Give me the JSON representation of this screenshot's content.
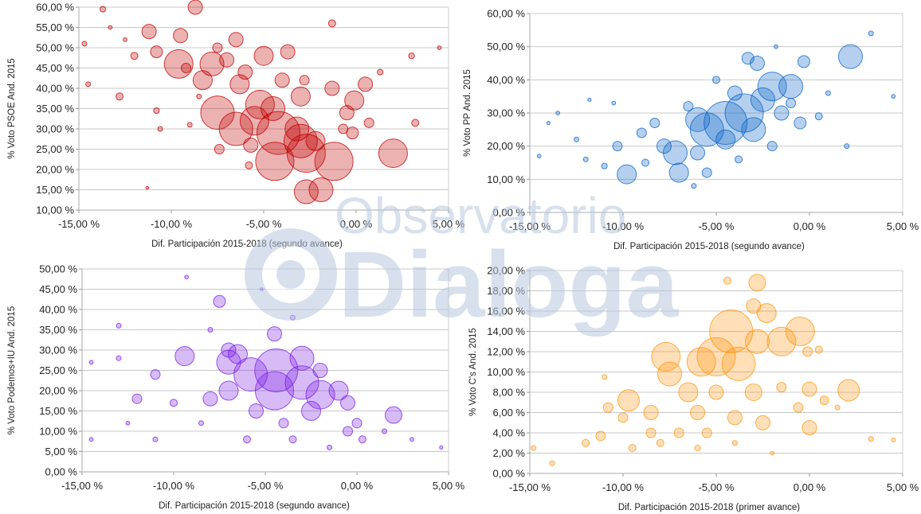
{
  "watermark": {
    "line1": "Observatorio",
    "line2": "Dialoga"
  },
  "chart_data": [
    {
      "type": "scatter",
      "title": "",
      "xlabel": "Dif. Participación 2015-2018 (segundo avance)",
      "ylabel": "% Voto PSOE And. 2015",
      "xlim": [
        -15,
        5
      ],
      "ylim": [
        10,
        60
      ],
      "xticks": [
        "-15,00 %",
        "-10,00 %",
        "-5,00 %",
        "0,00 %",
        "5,00 %"
      ],
      "yticks": [
        "10,00 %",
        "15,00 %",
        "20,00 %",
        "25,00 %",
        "30,00 %",
        "35,00 %",
        "40,00 %",
        "45,00 %",
        "50,00 %",
        "55,00 %",
        "60,00 %"
      ],
      "grid": true,
      "color": "#c00000",
      "points": [
        [
          -4.2,
          29,
          9
        ],
        [
          -4.4,
          22,
          8
        ],
        [
          -3,
          27,
          7
        ],
        [
          -2.7,
          24,
          8
        ],
        [
          -1.2,
          22,
          8
        ],
        [
          -6.5,
          30,
          7
        ],
        [
          -7.5,
          34,
          7
        ],
        [
          -5.2,
          36,
          6
        ],
        [
          -9.6,
          46,
          6
        ],
        [
          -7.8,
          46,
          5
        ],
        [
          -2.7,
          14.5,
          5
        ],
        [
          -1.9,
          15,
          5
        ],
        [
          2,
          24,
          6
        ],
        [
          -0.1,
          37,
          4
        ],
        [
          -1.3,
          40,
          3
        ],
        [
          -0.5,
          34,
          3
        ],
        [
          0.5,
          41,
          3
        ],
        [
          -5,
          48,
          4
        ],
        [
          -3.7,
          49,
          3
        ],
        [
          -8.7,
          60,
          3
        ],
        [
          -11.2,
          54,
          3
        ],
        [
          -10.8,
          49,
          2.5
        ],
        [
          -8.3,
          42,
          4
        ],
        [
          -6.3,
          41,
          4
        ],
        [
          -3,
          38,
          4
        ],
        [
          -5.7,
          26,
          3
        ],
        [
          -7.4,
          25,
          2
        ],
        [
          -7,
          47,
          3
        ],
        [
          -6.5,
          52,
          3
        ],
        [
          -9.5,
          53,
          3
        ],
        [
          -12,
          48,
          1.5
        ],
        [
          -14.7,
          51,
          1
        ],
        [
          -14.5,
          41,
          1
        ],
        [
          -12.8,
          38,
          1.5
        ],
        [
          -10.8,
          34.5,
          1.2
        ],
        [
          -10.6,
          30,
          1
        ],
        [
          -9,
          31,
          1
        ],
        [
          3.2,
          31.5,
          1.5
        ],
        [
          3,
          48,
          1.2
        ],
        [
          4.5,
          50,
          0.8
        ],
        [
          1.3,
          44,
          1.2
        ],
        [
          -11.3,
          15.5,
          0.6
        ],
        [
          -1.3,
          56,
          1.5
        ],
        [
          -13.7,
          59.5,
          1.2
        ],
        [
          -4,
          42,
          3
        ],
        [
          -8.5,
          38,
          1
        ],
        [
          -3.2,
          30,
          5
        ],
        [
          -5.5,
          32,
          6
        ],
        [
          -4.5,
          35,
          5
        ],
        [
          -2.2,
          27,
          4
        ],
        [
          -6,
          44,
          3
        ],
        [
          -7.5,
          50,
          2
        ],
        [
          -2.8,
          42,
          2
        ],
        [
          -0.7,
          30,
          2
        ],
        [
          -0.2,
          29,
          2.5
        ],
        [
          0.7,
          31.5,
          2
        ],
        [
          -9.2,
          45,
          2
        ],
        [
          -12.5,
          52,
          0.8
        ],
        [
          -13.3,
          55,
          0.8
        ],
        [
          -5.8,
          21,
          1.5
        ]
      ]
    },
    {
      "type": "scatter",
      "title": "",
      "xlabel": "Dif. Participación 2015-2018 (segundo avance)",
      "ylabel": "% Voto PP And. 2015",
      "xlim": [
        -15,
        5
      ],
      "ylim": [
        0,
        60
      ],
      "xticks": [
        "-15,00 %",
        "-10,00 %",
        "-5,00 %",
        "0,00 %",
        "5,00 %"
      ],
      "yticks": [
        "0,00 %",
        "10,00 %",
        "20,00 %",
        "30,00 %",
        "40,00 %",
        "50,00 %",
        "60,00 %"
      ],
      "grid": true,
      "color": "#0a64c8",
      "points": [
        [
          -4.5,
          27,
          9
        ],
        [
          -3.5,
          30,
          8
        ],
        [
          -5.5,
          25,
          7
        ],
        [
          -2,
          38,
          6
        ],
        [
          -1,
          38,
          5
        ],
        [
          -2.5,
          34,
          5
        ],
        [
          -7.2,
          18,
          5
        ],
        [
          -7,
          12,
          4
        ],
        [
          -9.8,
          11.5,
          4
        ],
        [
          2.2,
          47,
          5
        ],
        [
          -2.8,
          45,
          3
        ],
        [
          -3.3,
          46.5,
          2.5
        ],
        [
          -0.3,
          45.5,
          2.5
        ],
        [
          -4.5,
          22,
          4
        ],
        [
          -6,
          28,
          5
        ],
        [
          -3,
          25,
          5
        ],
        [
          -1.5,
          30,
          3
        ],
        [
          -0.5,
          27,
          2.5
        ],
        [
          -7.8,
          20,
          3
        ],
        [
          -9,
          24,
          2
        ],
        [
          -8.3,
          27,
          2
        ],
        [
          -10.3,
          20,
          2
        ],
        [
          -11,
          14,
          1.2
        ],
        [
          -12.5,
          22,
          1
        ],
        [
          -13.5,
          30,
          0.8
        ],
        [
          -14.5,
          17,
          0.8
        ],
        [
          3.3,
          54,
          1
        ],
        [
          4.5,
          35,
          0.8
        ],
        [
          1,
          36,
          1
        ],
        [
          -1.8,
          50,
          0.8
        ],
        [
          -5.5,
          12,
          2
        ],
        [
          -4,
          36,
          3
        ],
        [
          -6.5,
          32,
          2
        ],
        [
          -5,
          40,
          1.5
        ],
        [
          -3.8,
          16,
          1.5
        ],
        [
          -8.8,
          15,
          1.5
        ],
        [
          -10.5,
          33,
          0.8
        ],
        [
          -12,
          16,
          1
        ],
        [
          0.5,
          29,
          1.5
        ],
        [
          2,
          20,
          1
        ],
        [
          -2,
          20,
          2
        ],
        [
          -6.2,
          8,
          1
        ],
        [
          -14,
          27,
          0.7
        ],
        [
          -11.8,
          34,
          0.7
        ],
        [
          -6,
          18,
          3
        ],
        [
          -1,
          33,
          2
        ]
      ]
    },
    {
      "type": "scatter",
      "title": "",
      "xlabel": "Dif. Participación 2015-2018 (segundo avance)",
      "ylabel": "% Voto Podemos+IU And. 2015",
      "xlim": [
        -15,
        5
      ],
      "ylim": [
        0,
        50
      ],
      "xticks": [
        "-15,00 %",
        "-10,00 %",
        "-5,00 %",
        "0,00 %",
        "5,00 %"
      ],
      "yticks": [
        "0,00 %",
        "5,00 %",
        "10,00 %",
        "15,00 %",
        "20,00 %",
        "25,00 %",
        "30,00 %",
        "35,00 %",
        "40,00 %",
        "45,00 %",
        "50,00 %"
      ],
      "grid": true,
      "color": "#7a1fe6",
      "points": [
        [
          -4.4,
          25,
          9
        ],
        [
          -4.5,
          20,
          8
        ],
        [
          -3,
          22,
          7
        ],
        [
          -5.8,
          24,
          7
        ],
        [
          -2,
          19,
          6
        ],
        [
          -7,
          27,
          5
        ],
        [
          -9.4,
          28.5,
          4
        ],
        [
          -6.5,
          29,
          4
        ],
        [
          -4.5,
          34,
          3
        ],
        [
          -7.5,
          42,
          2.5
        ],
        [
          2,
          14,
          3.5
        ],
        [
          -0.5,
          17,
          3
        ],
        [
          -1,
          20,
          4
        ],
        [
          -0.5,
          10,
          2
        ],
        [
          -2.5,
          15,
          4
        ],
        [
          -5.5,
          15,
          3
        ],
        [
          -8,
          18,
          3
        ],
        [
          -11,
          24,
          2
        ],
        [
          -12,
          18,
          2
        ],
        [
          -10,
          17,
          1.5
        ],
        [
          -13,
          28,
          1
        ],
        [
          -14.5,
          27,
          0.8
        ],
        [
          -14.5,
          8,
          0.8
        ],
        [
          -9.3,
          48,
          0.8
        ],
        [
          -5.2,
          45,
          0.6
        ],
        [
          -3.5,
          38,
          1
        ],
        [
          -7,
          30,
          3
        ],
        [
          0,
          12,
          2
        ],
        [
          0.3,
          8,
          1.5
        ],
        [
          1.5,
          10,
          1
        ],
        [
          4.6,
          6,
          0.7
        ],
        [
          3,
          8,
          0.8
        ],
        [
          -6,
          8,
          1.5
        ],
        [
          -8.5,
          12,
          1
        ],
        [
          -11,
          8,
          1
        ],
        [
          -12.5,
          12,
          0.8
        ],
        [
          -4,
          12,
          2
        ],
        [
          -3.5,
          8,
          1.5
        ],
        [
          -1.5,
          6,
          1
        ],
        [
          -13,
          36,
          1
        ],
        [
          -8,
          35,
          1
        ],
        [
          -7,
          20,
          4
        ],
        [
          -3,
          28,
          5
        ],
        [
          -2,
          25,
          3
        ]
      ]
    },
    {
      "type": "scatter",
      "title": "",
      "xlabel": "Dif. Participación 2015-2018 (primer avance)",
      "ylabel": "% Voto C's And. 2015",
      "xlim": [
        -15,
        5
      ],
      "ylim": [
        0,
        20
      ],
      "xticks": [
        "-15,00 %",
        "-10,00 %",
        "-5,00 %",
        "0,00 %",
        "5,00 %"
      ],
      "yticks": [
        "0,00 %",
        "2,00 %",
        "4,00 %",
        "6,00 %",
        "8,00 %",
        "10,00 %",
        "12,00 %",
        "14,00 %",
        "16,00 %",
        "18,00 %",
        "20,00 %"
      ],
      "grid": true,
      "color": "#ff9410",
      "points": [
        [
          -4.2,
          14,
          9
        ],
        [
          -5,
          11.5,
          8
        ],
        [
          -3.8,
          10.8,
          7
        ],
        [
          -7.7,
          11.5,
          6
        ],
        [
          -1.5,
          13,
          6
        ],
        [
          -0.5,
          14,
          6
        ],
        [
          -2.8,
          13,
          5
        ],
        [
          -7.5,
          9.8,
          5
        ],
        [
          -5.8,
          11,
          6
        ],
        [
          -2.8,
          18.8,
          3.5
        ],
        [
          -4.4,
          19,
          1.5
        ],
        [
          -2.3,
          15.8,
          4
        ],
        [
          -3,
          16.5,
          3
        ],
        [
          2.1,
          8.2,
          4.5
        ],
        [
          -9.7,
          7.2,
          4.5
        ],
        [
          0,
          8.3,
          3
        ],
        [
          -6.5,
          8,
          4
        ],
        [
          -5,
          8,
          3
        ],
        [
          -3,
          8,
          3.5
        ],
        [
          -1.5,
          8.5,
          2
        ],
        [
          -8.5,
          6,
          3
        ],
        [
          -10,
          5.5,
          2
        ],
        [
          -6,
          6,
          3
        ],
        [
          -4,
          5.5,
          3
        ],
        [
          -2.5,
          5,
          3
        ],
        [
          0,
          4.5,
          3
        ],
        [
          -0.6,
          6.5,
          2
        ],
        [
          0.8,
          7.2,
          1.8
        ],
        [
          -8.5,
          4,
          2
        ],
        [
          -7,
          4,
          2
        ],
        [
          -5.5,
          4,
          2
        ],
        [
          -11.2,
          3.7,
          2
        ],
        [
          -9.5,
          2.5,
          1.5
        ],
        [
          -12,
          3,
          1.5
        ],
        [
          -14.8,
          2.5,
          1
        ],
        [
          -13.8,
          1,
          1
        ],
        [
          -11,
          9.5,
          1
        ],
        [
          -10.8,
          6.5,
          2
        ],
        [
          3.3,
          3.4,
          1
        ],
        [
          4.5,
          3.3,
          0.8
        ],
        [
          1.5,
          6.5,
          1
        ],
        [
          -8,
          3,
          1.5
        ],
        [
          -6,
          2.5,
          1.2
        ],
        [
          -4,
          3,
          1
        ],
        [
          -2,
          2,
          0.8
        ],
        [
          0.5,
          12.2,
          1.5
        ],
        [
          -0.1,
          12,
          2
        ]
      ]
    }
  ]
}
